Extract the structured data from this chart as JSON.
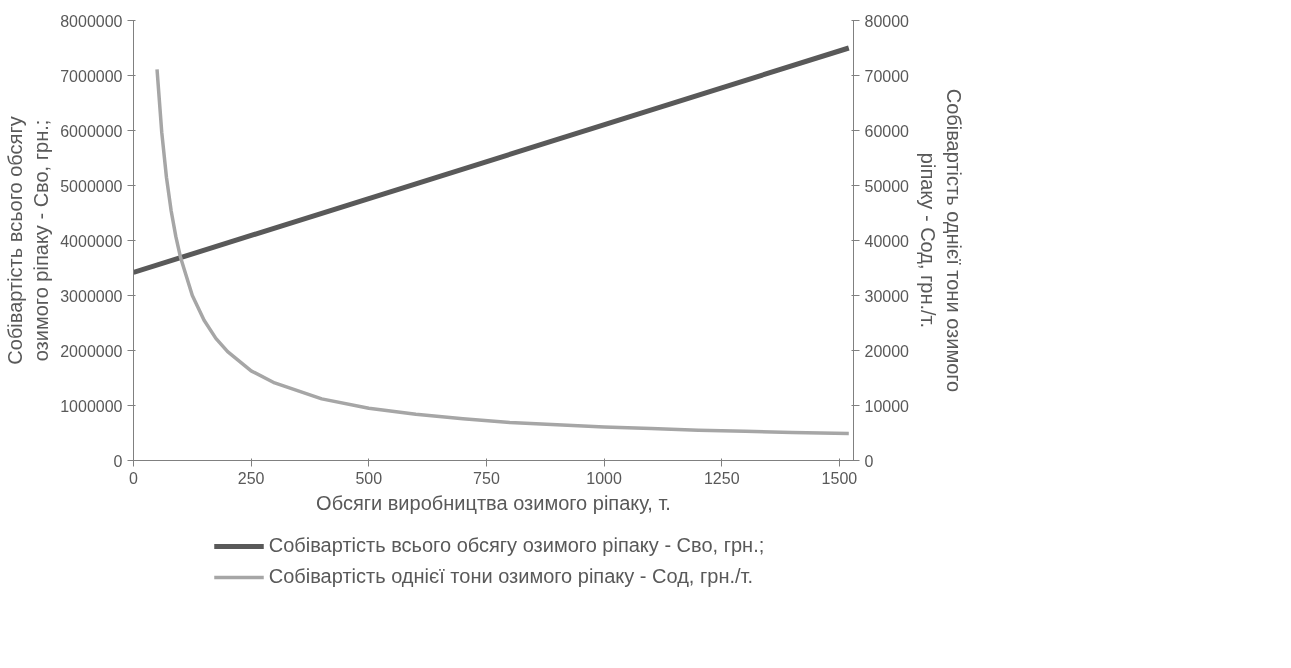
{
  "chart_data": {
    "type": "line",
    "xlabel": "Обсяги виробництва озимого ріпаку, т.",
    "ylabel": "Собівартість всього обсягу\nозимого ріпаку - Сво, грн.;",
    "y2label": "Собівартість однієї тони озимого\nріпаку - Сод, грн./т.",
    "xlim": [
      0,
      1530
    ],
    "xticks": [
      0,
      250,
      500,
      750,
      1000,
      1250,
      1500
    ],
    "ylim": [
      0,
      8000000
    ],
    "yticks": [
      0,
      1000000,
      2000000,
      3000000,
      4000000,
      5000000,
      6000000,
      7000000,
      8000000
    ],
    "y2lim": [
      0,
      80000
    ],
    "y2ticks": [
      0,
      10000,
      20000,
      30000,
      40000,
      50000,
      60000,
      70000,
      80000
    ],
    "grid": false,
    "legend": "bottom",
    "marker": "none",
    "line_style": "solid",
    "series": [
      {
        "name": "Собівартість всього обсягу озимого ріпаку - Сво, грн.;",
        "color": "#595959",
        "x": [
          0,
          1520
        ],
        "values": [
          3420000,
          7500000
        ]
      },
      {
        "name": "Собівартість однієї тони озимого ріпаку - Сод, грн./т.",
        "color": "#a6a6a6",
        "axis": "y2",
        "x": [
          50,
          60,
          70,
          80,
          90,
          100,
          125,
          150,
          175,
          200,
          250,
          300,
          400,
          500,
          600,
          700,
          800,
          900,
          1000,
          1100,
          1200,
          1300,
          1400,
          1520
        ],
        "values": [
          71100,
          59700,
          51500,
          45400,
          40700,
          36900,
          30000,
          25500,
          22200,
          19800,
          16300,
          14100,
          11200,
          9500,
          8400,
          7600,
          6900,
          6500,
          6100,
          5800,
          5500,
          5300,
          5100,
          4900
        ]
      }
    ]
  }
}
